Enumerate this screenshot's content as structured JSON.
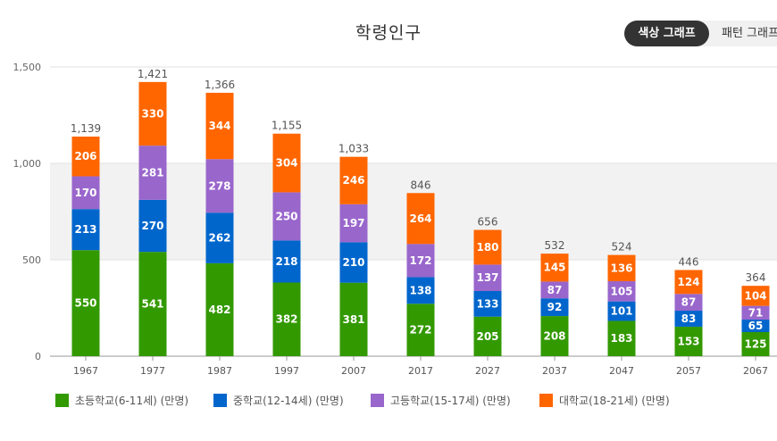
{
  "page": {
    "title": "학령인구",
    "toggle": {
      "color_label": "색상 그래프",
      "pattern_label": "패턴 그래프"
    }
  },
  "chart_data": {
    "type": "bar",
    "stacked": true,
    "title": "학령인구",
    "categories": [
      "1967",
      "1977",
      "1987",
      "1997",
      "2007",
      "2017",
      "2027",
      "2037",
      "2047",
      "2057",
      "2067"
    ],
    "series": [
      {
        "name": "초등학교(6-11세) (만명)",
        "color": "#339900",
        "values": [
          550,
          541,
          482,
          382,
          381,
          272,
          205,
          208,
          183,
          153,
          125
        ]
      },
      {
        "name": "중학교(12-14세) (만명)",
        "color": "#0066cc",
        "values": [
          213,
          270,
          262,
          218,
          210,
          138,
          133,
          92,
          101,
          83,
          65
        ]
      },
      {
        "name": "고등학교(15-17세) (만명)",
        "color": "#9966cc",
        "values": [
          170,
          281,
          278,
          250,
          197,
          172,
          137,
          87,
          105,
          87,
          71
        ]
      },
      {
        "name": "대학교(18-21세) (만명)",
        "color": "#ff6600",
        "values": [
          206,
          330,
          344,
          304,
          246,
          264,
          180,
          145,
          136,
          124,
          104
        ]
      }
    ],
    "totals": [
      1139,
      1421,
      1366,
      1155,
      1033,
      846,
      656,
      532,
      524,
      446,
      364
    ],
    "yticks": [
      0,
      500,
      1000,
      1500
    ],
    "ylim": [
      0,
      1500
    ],
    "grid": true,
    "legend_position": "bottom"
  }
}
